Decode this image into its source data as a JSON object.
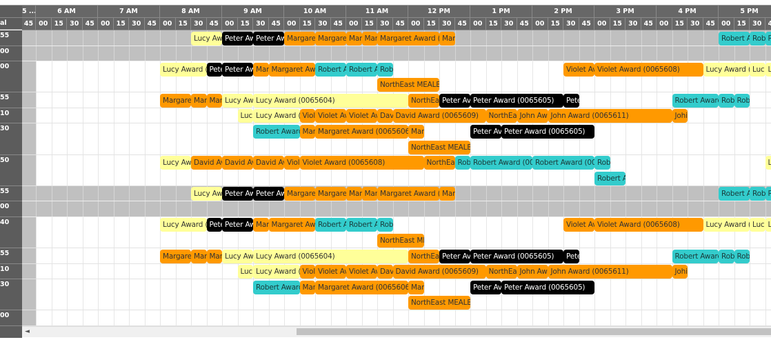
{
  "header": {
    "corner_label": "",
    "left_sub_label": "al",
    "hours": [
      "5 ...",
      "6 AM",
      "7 AM",
      "8 AM",
      "9 AM",
      "10 AM",
      "11 AM",
      "12 PM",
      "1 PM",
      "2 PM",
      "3 PM",
      "4 PM",
      "5 PM"
    ],
    "first_hour_slots": [
      "45"
    ],
    "slot_labels": [
      "00",
      "15",
      "30",
      "45"
    ]
  },
  "colors": {
    "yellow": {
      "bg": "#ffff99",
      "fg": "#333333"
    },
    "black": {
      "bg": "#000000",
      "fg": "#ffffff"
    },
    "orange": {
      "bg": "#ff9900",
      "fg": "#333333"
    },
    "teal": {
      "bg": "#33cccc",
      "fg": "#1a3a3a"
    }
  },
  "rows": [
    {
      "label": "55",
      "shaded": true,
      "events": [
        [
          "08:30",
          "09:00",
          "Lucy Aw",
          "yellow",
          0
        ],
        [
          "09:00",
          "09:30",
          "Peter Aw",
          "black",
          0
        ],
        [
          "09:30",
          "10:00",
          "Peter Aw",
          "black",
          0
        ],
        [
          "10:00",
          "10:30",
          "Margaret",
          "orange",
          0
        ],
        [
          "10:30",
          "11:00",
          "Margaret",
          "orange",
          0
        ],
        [
          "11:00",
          "11:15",
          "Mar",
          "orange",
          0
        ],
        [
          "11:15",
          "11:30",
          "Mar",
          "orange",
          0
        ],
        [
          "11:30",
          "12:30",
          "Margaret Award (0",
          "orange",
          0
        ],
        [
          "12:30",
          "12:45",
          "Mar",
          "orange",
          0
        ],
        [
          "17:00",
          "17:30",
          "Robert A",
          "teal",
          0
        ],
        [
          "17:30",
          "17:45",
          "Rob",
          "teal",
          0
        ],
        [
          "17:45",
          "18:15",
          "R",
          "teal",
          0
        ]
      ]
    },
    {
      "label": "00",
      "shaded": true,
      "events": []
    },
    {
      "label": "00",
      "shaded": false,
      "events": [
        [
          "08:00",
          "08:45",
          "Lucy Award (",
          "yellow",
          0
        ],
        [
          "08:45",
          "09:00",
          "Pete",
          "black",
          0
        ],
        [
          "09:00",
          "09:30",
          "Peter Aw",
          "black",
          0
        ],
        [
          "09:30",
          "09:45",
          "Mar",
          "orange",
          0
        ],
        [
          "09:45",
          "10:30",
          "Margaret Awa",
          "orange",
          0
        ],
        [
          "10:30",
          "11:00",
          "Robert A",
          "teal",
          0
        ],
        [
          "11:00",
          "11:30",
          "Robert A",
          "teal",
          0
        ],
        [
          "11:30",
          "11:45",
          "Rob",
          "teal",
          0
        ],
        [
          "14:30",
          "15:00",
          "Violet Av",
          "orange",
          0
        ],
        [
          "15:00",
          "16:45",
          "Violet Award (0065608)",
          "orange",
          0
        ],
        [
          "16:45",
          "17:30",
          "Lucy Award (",
          "yellow",
          0
        ],
        [
          "17:30",
          "17:45",
          "Luc",
          "yellow",
          0
        ],
        [
          "17:45",
          "18:15",
          "L",
          "yellow",
          0
        ],
        [
          "11:30",
          "12:30",
          "NorthEast MEALB",
          "orange",
          1
        ]
      ]
    },
    {
      "label": "55",
      "shaded": false,
      "events": [
        [
          "08:00",
          "08:30",
          "Margaret",
          "orange",
          0
        ],
        [
          "08:30",
          "08:45",
          "Mar",
          "orange",
          0
        ],
        [
          "08:45",
          "09:00",
          "Mar",
          "orange",
          0
        ],
        [
          "09:00",
          "09:30",
          "Lucy Aw",
          "yellow",
          0
        ],
        [
          "09:30",
          "12:00",
          "Lucy Award (0065604)",
          "yellow",
          0
        ],
        [
          "12:00",
          "12:30",
          "NorthEa",
          "orange",
          0
        ],
        [
          "12:30",
          "13:00",
          "Peter Av",
          "black",
          0
        ],
        [
          "13:00",
          "14:30",
          "Peter Award (0065605)",
          "black",
          0
        ],
        [
          "14:30",
          "14:45",
          "Pete",
          "black",
          0
        ],
        [
          "16:15",
          "17:00",
          "Robert Award",
          "teal",
          0
        ],
        [
          "17:00",
          "17:15",
          "Rob",
          "teal",
          0
        ],
        [
          "17:15",
          "17:30",
          "Rob",
          "teal",
          0
        ]
      ]
    },
    {
      "label": "10",
      "shaded": false,
      "events": [
        [
          "09:15",
          "09:30",
          "Luc",
          "yellow",
          0
        ],
        [
          "09:30",
          "10:15",
          "Lucy Award (",
          "yellow",
          0
        ],
        [
          "10:15",
          "10:30",
          "Viol",
          "orange",
          0
        ],
        [
          "10:30",
          "11:00",
          "Violet Av",
          "orange",
          0
        ],
        [
          "11:00",
          "11:30",
          "Violet Av",
          "orange",
          0
        ],
        [
          "11:30",
          "11:45",
          "Dav",
          "orange",
          0
        ],
        [
          "11:45",
          "13:15",
          "David Award (0065609)",
          "orange",
          0
        ],
        [
          "13:15",
          "13:45",
          "NorthEa",
          "orange",
          0
        ],
        [
          "13:45",
          "14:15",
          "John Aw",
          "orange",
          0
        ],
        [
          "14:15",
          "16:15",
          "John Award (0065611)",
          "orange",
          0
        ],
        [
          "16:15",
          "16:30",
          "Johi",
          "orange",
          0
        ]
      ]
    },
    {
      "label": "30",
      "shaded": false,
      "events": [
        [
          "09:30",
          "10:15",
          "Robert Award",
          "teal",
          0
        ],
        [
          "10:15",
          "10:30",
          "Mar",
          "orange",
          0
        ],
        [
          "10:30",
          "12:00",
          "Margaret Award (0065606)",
          "orange",
          0
        ],
        [
          "12:00",
          "12:15",
          "Mar",
          "orange",
          0
        ],
        [
          "13:00",
          "13:30",
          "Peter Av",
          "black",
          0
        ],
        [
          "13:30",
          "15:00",
          "Peter Award (0065605)",
          "black",
          0
        ],
        [
          "12:00",
          "13:00",
          "NorthEast MEALB",
          "orange",
          1
        ]
      ]
    },
    {
      "label": "50",
      "shaded": false,
      "events": [
        [
          "08:00",
          "08:30",
          "Lucy Aw",
          "yellow",
          0
        ],
        [
          "08:30",
          "09:00",
          "David Av",
          "orange",
          0
        ],
        [
          "09:00",
          "09:30",
          "David Av",
          "orange",
          0
        ],
        [
          "09:30",
          "10:00",
          "David Av",
          "orange",
          0
        ],
        [
          "10:00",
          "10:15",
          "Viol",
          "orange",
          0
        ],
        [
          "10:15",
          "12:15",
          "Violet Award (0065608)",
          "orange",
          0
        ],
        [
          "12:15",
          "12:45",
          "NorthEa",
          "orange",
          0
        ],
        [
          "12:45",
          "13:00",
          "Rob",
          "teal",
          0
        ],
        [
          "13:00",
          "14:00",
          "Robert Award (00",
          "teal",
          0
        ],
        [
          "14:00",
          "15:00",
          "Robert Award (00",
          "teal",
          0
        ],
        [
          "15:00",
          "15:15",
          "Rob",
          "teal",
          0
        ],
        [
          "17:45",
          "18:15",
          "L",
          "yellow",
          0
        ],
        [
          "15:00",
          "15:30",
          "Robert A",
          "teal",
          1
        ]
      ]
    },
    {
      "label": "55",
      "shaded": true,
      "events": [
        [
          "08:30",
          "09:00",
          "Lucy Aw",
          "yellow",
          0
        ],
        [
          "09:00",
          "09:30",
          "Peter Aw",
          "black",
          0
        ],
        [
          "09:30",
          "10:00",
          "Peter Aw",
          "black",
          0
        ],
        [
          "10:00",
          "10:30",
          "Margaret",
          "orange",
          0
        ],
        [
          "10:30",
          "11:00",
          "Margaret",
          "orange",
          0
        ],
        [
          "11:00",
          "11:15",
          "Mar",
          "orange",
          0
        ],
        [
          "11:15",
          "11:30",
          "Mar",
          "orange",
          0
        ],
        [
          "11:30",
          "12:30",
          "Margaret Award (0",
          "orange",
          0
        ],
        [
          "12:30",
          "12:45",
          "Mar",
          "orange",
          0
        ],
        [
          "17:00",
          "17:30",
          "Robert A",
          "teal",
          0
        ],
        [
          "17:30",
          "17:45",
          "Rob",
          "teal",
          0
        ],
        [
          "17:45",
          "18:15",
          "R",
          "teal",
          0
        ]
      ]
    },
    {
      "label": "00",
      "shaded": true,
      "events": []
    },
    {
      "label": "40",
      "shaded": false,
      "events": [
        [
          "08:00",
          "08:45",
          "Lucy Award (",
          "yellow",
          0
        ],
        [
          "08:45",
          "09:00",
          "Pete",
          "black",
          0
        ],
        [
          "09:00",
          "09:30",
          "Peter Aw",
          "black",
          0
        ],
        [
          "09:30",
          "09:45",
          "Mar",
          "orange",
          0
        ],
        [
          "09:45",
          "10:30",
          "Margaret Awa",
          "orange",
          0
        ],
        [
          "10:30",
          "11:00",
          "Robert A",
          "teal",
          0
        ],
        [
          "11:00",
          "11:30",
          "Robert A",
          "teal",
          0
        ],
        [
          "11:30",
          "11:45",
          "Rob",
          "teal",
          0
        ],
        [
          "14:30",
          "15:00",
          "Violet Av",
          "orange",
          0
        ],
        [
          "15:00",
          "16:45",
          "Violet Award (0065608)",
          "orange",
          0
        ],
        [
          "16:45",
          "17:30",
          "Lucy Award (",
          "yellow",
          0
        ],
        [
          "17:30",
          "17:45",
          "Luc",
          "yellow",
          0
        ],
        [
          "17:45",
          "18:15",
          "L",
          "yellow",
          0
        ],
        [
          "11:30",
          "12:15",
          "NorthEast ME",
          "orange",
          1
        ]
      ]
    },
    {
      "label": "55",
      "shaded": false,
      "events": [
        [
          "08:00",
          "08:30",
          "Margaret",
          "orange",
          0
        ],
        [
          "08:30",
          "08:45",
          "Mar",
          "orange",
          0
        ],
        [
          "08:45",
          "09:00",
          "Mar",
          "orange",
          0
        ],
        [
          "09:00",
          "09:30",
          "Lucy Aw",
          "yellow",
          0
        ],
        [
          "09:30",
          "12:00",
          "Lucy Award (0065604)",
          "yellow",
          0
        ],
        [
          "12:00",
          "12:30",
          "NorthEa",
          "orange",
          0
        ],
        [
          "12:30",
          "13:00",
          "Peter Av",
          "black",
          0
        ],
        [
          "13:00",
          "14:30",
          "Peter Award (0065605)",
          "black",
          0
        ],
        [
          "14:30",
          "14:45",
          "Pete",
          "black",
          0
        ],
        [
          "16:15",
          "17:00",
          "Robert Award",
          "teal",
          0
        ],
        [
          "17:00",
          "17:15",
          "Rob",
          "teal",
          0
        ],
        [
          "17:15",
          "17:30",
          "Rob",
          "teal",
          0
        ]
      ]
    },
    {
      "label": "10",
      "shaded": false,
      "events": [
        [
          "09:15",
          "09:30",
          "Luc",
          "yellow",
          0
        ],
        [
          "09:30",
          "10:15",
          "Lucy Award (",
          "yellow",
          0
        ],
        [
          "10:15",
          "10:30",
          "Viol",
          "orange",
          0
        ],
        [
          "10:30",
          "11:00",
          "Violet Av",
          "orange",
          0
        ],
        [
          "11:00",
          "11:30",
          "Violet Av",
          "orange",
          0
        ],
        [
          "11:30",
          "11:45",
          "Dav",
          "orange",
          0
        ],
        [
          "11:45",
          "13:15",
          "David Award (0065609)",
          "orange",
          0
        ],
        [
          "13:15",
          "13:45",
          "NorthEa",
          "orange",
          0
        ],
        [
          "13:45",
          "14:15",
          "John Aw",
          "orange",
          0
        ],
        [
          "14:15",
          "16:15",
          "John Award (0065611)",
          "orange",
          0
        ],
        [
          "16:15",
          "16:30",
          "Johi",
          "orange",
          0
        ]
      ]
    },
    {
      "label": "30",
      "shaded": false,
      "events": [
        [
          "09:30",
          "10:15",
          "Robert Award",
          "teal",
          0
        ],
        [
          "10:15",
          "10:30",
          "Mar",
          "orange",
          0
        ],
        [
          "10:30",
          "12:00",
          "Margaret Award (0065606)",
          "orange",
          0
        ],
        [
          "12:00",
          "12:15",
          "Mar",
          "orange",
          0
        ],
        [
          "13:00",
          "13:30",
          "Peter Av",
          "black",
          0
        ],
        [
          "13:30",
          "15:00",
          "Peter Award (0065605)",
          "black",
          0
        ],
        [
          "12:00",
          "13:00",
          "NorthEast MEALB",
          "orange",
          1
        ]
      ]
    },
    {
      "label": "00",
      "shaded": false,
      "events": []
    }
  ],
  "scrollbar": {
    "left_arrow": "◄"
  }
}
